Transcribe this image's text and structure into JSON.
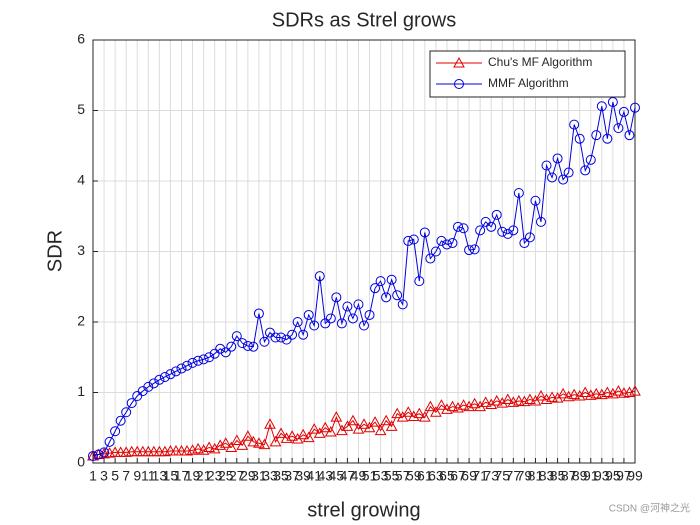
{
  "chart_data": {
    "type": "line",
    "title": "SDRs as Strel grows",
    "xlabel": "strel growing",
    "ylabel": "SDR",
    "watermark": "CSDN @河神之光",
    "x": [
      1,
      2,
      3,
      4,
      5,
      6,
      7,
      8,
      9,
      10,
      11,
      12,
      13,
      14,
      15,
      16,
      17,
      18,
      19,
      20,
      21,
      22,
      23,
      24,
      25,
      26,
      27,
      28,
      29,
      30,
      31,
      32,
      33,
      34,
      35,
      36,
      37,
      38,
      39,
      40,
      41,
      42,
      43,
      44,
      45,
      46,
      47,
      48,
      49,
      50,
      51,
      52,
      53,
      54,
      55,
      56,
      57,
      58,
      59,
      60,
      61,
      62,
      63,
      64,
      65,
      66,
      67,
      68,
      69,
      70,
      71,
      72,
      73,
      74,
      75,
      76,
      77,
      78,
      79,
      80,
      81,
      82,
      83,
      84,
      85,
      86,
      87,
      88,
      89,
      90,
      91,
      92,
      93,
      94,
      95,
      96,
      97,
      98,
      99
    ],
    "series": [
      {
        "name": "Chu's MF Algorithm",
        "color": "#e00000",
        "marker": "triangle",
        "values": [
          0.1,
          0.12,
          0.13,
          0.14,
          0.15,
          0.15,
          0.15,
          0.16,
          0.16,
          0.16,
          0.16,
          0.16,
          0.16,
          0.16,
          0.17,
          0.17,
          0.17,
          0.17,
          0.18,
          0.2,
          0.18,
          0.22,
          0.2,
          0.25,
          0.28,
          0.22,
          0.32,
          0.25,
          0.38,
          0.3,
          0.28,
          0.26,
          0.55,
          0.3,
          0.42,
          0.35,
          0.38,
          0.34,
          0.4,
          0.36,
          0.48,
          0.42,
          0.5,
          0.44,
          0.65,
          0.46,
          0.52,
          0.6,
          0.48,
          0.55,
          0.5,
          0.58,
          0.46,
          0.6,
          0.52,
          0.7,
          0.65,
          0.72,
          0.66,
          0.7,
          0.65,
          0.8,
          0.72,
          0.82,
          0.76,
          0.8,
          0.78,
          0.82,
          0.8,
          0.84,
          0.8,
          0.86,
          0.83,
          0.88,
          0.85,
          0.9,
          0.86,
          0.88,
          0.87,
          0.9,
          0.88,
          0.95,
          0.9,
          0.93,
          0.92,
          0.98,
          0.94,
          0.97,
          0.95,
          1.0,
          0.96,
          0.98,
          0.97,
          1.0,
          0.98,
          1.02,
          0.99,
          1.0,
          1.02
        ]
      },
      {
        "name": "MMF Algorithm",
        "color": "#0000e0",
        "marker": "circle",
        "values": [
          0.1,
          0.12,
          0.15,
          0.3,
          0.45,
          0.6,
          0.72,
          0.85,
          0.95,
          1.02,
          1.08,
          1.13,
          1.18,
          1.22,
          1.26,
          1.3,
          1.34,
          1.38,
          1.42,
          1.45,
          1.47,
          1.5,
          1.55,
          1.62,
          1.57,
          1.65,
          1.8,
          1.7,
          1.66,
          1.65,
          2.12,
          1.72,
          1.85,
          1.78,
          1.78,
          1.75,
          1.82,
          2.0,
          1.82,
          2.1,
          1.95,
          2.65,
          1.98,
          2.05,
          2.35,
          1.98,
          2.22,
          2.05,
          2.25,
          1.95,
          2.1,
          2.48,
          2.58,
          2.35,
          2.6,
          2.38,
          2.25,
          3.15,
          3.17,
          2.58,
          3.27,
          2.9,
          3.0,
          3.15,
          3.1,
          3.12,
          3.35,
          3.33,
          3.02,
          3.03,
          3.3,
          3.42,
          3.35,
          3.52,
          3.28,
          3.25,
          3.3,
          3.83,
          3.12,
          3.2,
          3.72,
          3.42,
          4.22,
          4.05,
          4.32,
          4.02,
          4.12,
          4.8,
          4.6,
          4.15,
          4.3,
          4.65,
          5.06,
          4.6,
          5.12,
          4.75,
          4.98,
          4.65,
          5.04
        ]
      }
    ],
    "xlim": [
      1,
      99
    ],
    "ylim": [
      0,
      6
    ],
    "xticks": [
      1,
      3,
      5,
      7,
      9,
      11,
      13,
      15,
      17,
      19,
      21,
      23,
      25,
      27,
      29,
      31,
      33,
      35,
      37,
      39,
      41,
      43,
      45,
      47,
      49,
      51,
      53,
      55,
      57,
      59,
      61,
      63,
      65,
      67,
      69,
      71,
      73,
      75,
      77,
      79,
      81,
      83,
      85,
      87,
      89,
      91,
      93,
      95,
      97,
      99
    ],
    "yticks": [
      0,
      1,
      2,
      3,
      4,
      5,
      6
    ],
    "grid": true,
    "legend": "top-right"
  }
}
